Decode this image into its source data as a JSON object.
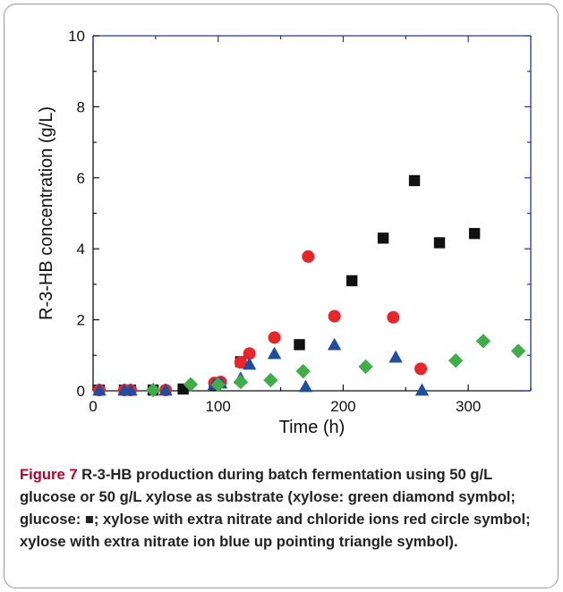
{
  "figure": {
    "caption_label": "Figure 7",
    "caption_text": " R-3-HB production during batch fermentation using 50 g/L glucose or 50 g/L xylose as substrate (xylose: green diamond symbol; glucose: ■; xylose with extra nitrate and chloride ions red circle symbol; xylose with extra nitrate ion blue up pointing triangle symbol)."
  },
  "colors": {
    "axis_left_bottom": "#111111",
    "axis_top_right": "#2233aa",
    "caption_label": "#b8002a"
  },
  "chart_data": {
    "type": "scatter",
    "xlabel": "Time (h)",
    "ylabel": "R-3-HB concentration (g/L)",
    "xlim": [
      0,
      350
    ],
    "ylim": [
      0,
      10
    ],
    "xticks": [
      0,
      100,
      200,
      300
    ],
    "yticks": [
      0,
      2,
      4,
      6,
      8,
      10
    ],
    "grid": false,
    "series": [
      {
        "marker": "square",
        "color": "#111111",
        "x": [
          5,
          25,
          30,
          48,
          72,
          97,
          118,
          165,
          207,
          232,
          257,
          277,
          305
        ],
        "y": [
          0.02,
          0.02,
          0.02,
          0.02,
          0.05,
          0.15,
          0.82,
          1.3,
          3.1,
          4.3,
          5.92,
          4.17,
          4.43
        ]
      },
      {
        "marker": "circle",
        "color": "#e8262a",
        "x": [
          5,
          25,
          30,
          58,
          97,
          102,
          118,
          125,
          145,
          172,
          193,
          240,
          262
        ],
        "y": [
          0.02,
          0.02,
          0.02,
          0.02,
          0.22,
          0.25,
          0.8,
          1.05,
          1.5,
          3.78,
          2.1,
          2.07,
          0.62
        ]
      },
      {
        "marker": "triangle",
        "color": "#1f4e9e",
        "x": [
          5,
          25,
          30,
          58,
          97,
          102,
          118,
          125,
          145,
          170,
          193,
          242,
          263
        ],
        "y": [
          0.02,
          0.02,
          0.02,
          0.02,
          0.18,
          0.22,
          0.35,
          0.75,
          1.05,
          0.12,
          1.3,
          0.95,
          0.02
        ]
      },
      {
        "marker": "diamond",
        "color": "#3fae49",
        "x": [
          48,
          78,
          100,
          118,
          142,
          168,
          218,
          290,
          312,
          340
        ],
        "y": [
          0.02,
          0.18,
          0.17,
          0.25,
          0.3,
          0.55,
          0.68,
          0.85,
          1.4,
          1.12
        ]
      }
    ]
  }
}
